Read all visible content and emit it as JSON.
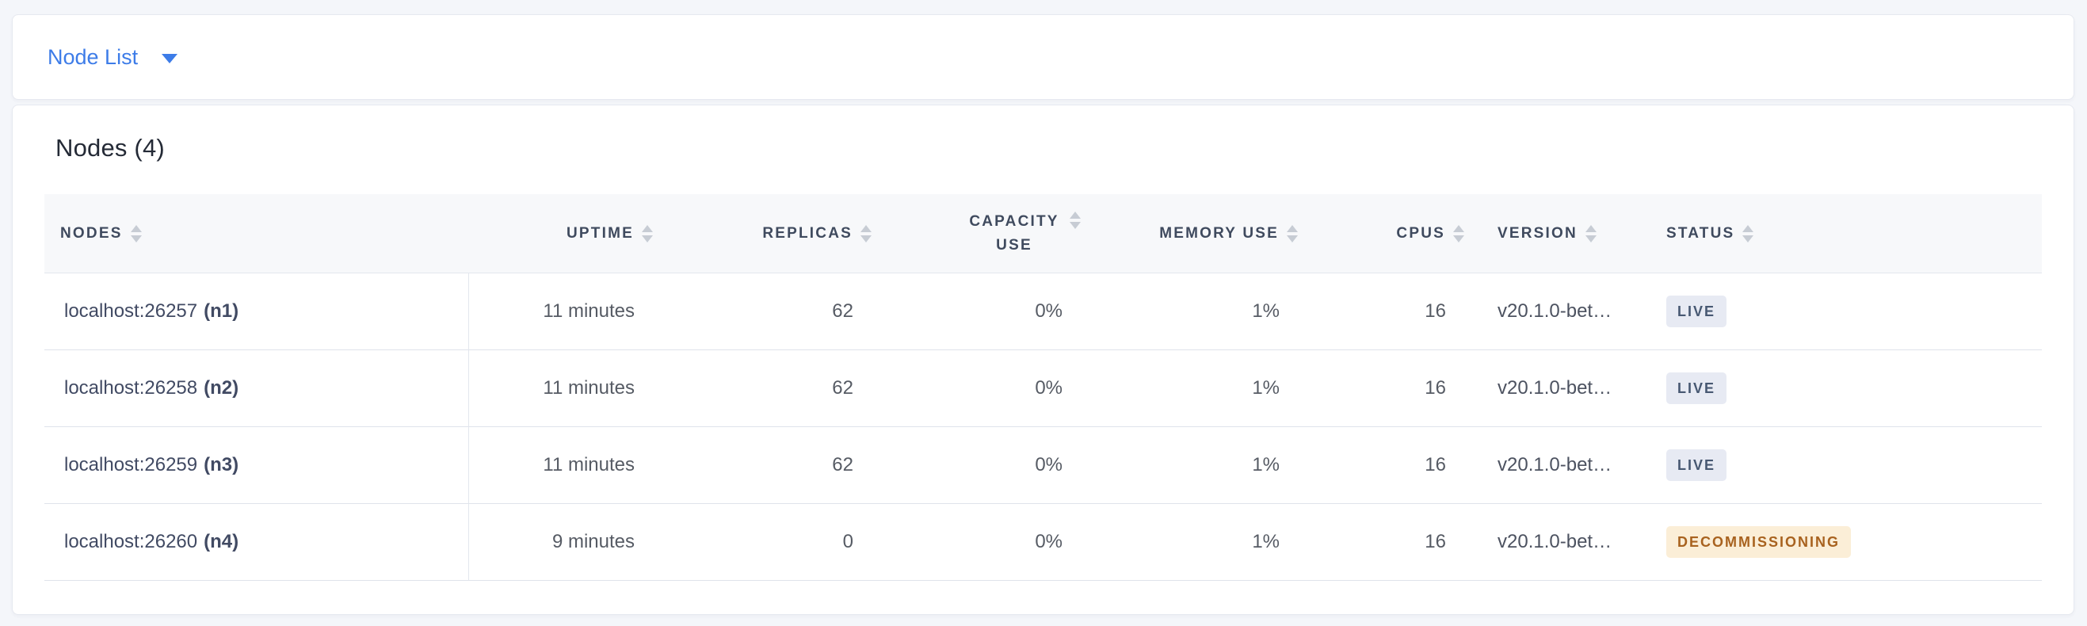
{
  "colors": {
    "accent_blue": "#3d7ce8",
    "page_background": "#f4f6fa",
    "header_text": "#3f4a5e",
    "live_badge_bg": "#e7eaf3",
    "live_badge_text": "#475872",
    "decommissioning_badge_bg": "#fbeed7",
    "decommissioning_badge_text": "#a8621f"
  },
  "selector_bar": {
    "label": "Node List"
  },
  "main": {
    "title": "Nodes (4)",
    "table": {
      "columns": [
        {
          "label": "NODES",
          "align": "left",
          "sortable": true
        },
        {
          "label": "UPTIME",
          "align": "right",
          "sortable": true
        },
        {
          "label": "REPLICAS",
          "align": "right",
          "sortable": true
        },
        {
          "label": "CAPACITY USE",
          "align": "right",
          "sortable": true
        },
        {
          "label": "MEMORY USE",
          "align": "right",
          "sortable": true
        },
        {
          "label": "CPUS",
          "align": "right",
          "sortable": true
        },
        {
          "label": "VERSION",
          "align": "left",
          "sortable": true
        },
        {
          "label": "STATUS",
          "align": "left",
          "sortable": true
        }
      ],
      "rows": [
        {
          "address": "localhost:26257",
          "id": "(n1)",
          "uptime": "11 minutes",
          "replicas": "62",
          "capacity_use": "0%",
          "memory_use": "1%",
          "cpus": "16",
          "version": "v20.1.0-bet…",
          "status": {
            "label": "LIVE",
            "type": "live"
          }
        },
        {
          "address": "localhost:26258",
          "id": "(n2)",
          "uptime": "11 minutes",
          "replicas": "62",
          "capacity_use": "0%",
          "memory_use": "1%",
          "cpus": "16",
          "version": "v20.1.0-bet…",
          "status": {
            "label": "LIVE",
            "type": "live"
          }
        },
        {
          "address": "localhost:26259",
          "id": "(n3)",
          "uptime": "11 minutes",
          "replicas": "62",
          "capacity_use": "0%",
          "memory_use": "1%",
          "cpus": "16",
          "version": "v20.1.0-bet…",
          "status": {
            "label": "LIVE",
            "type": "live"
          }
        },
        {
          "address": "localhost:26260",
          "id": "(n4)",
          "uptime": "9 minutes",
          "replicas": "0",
          "capacity_use": "0%",
          "memory_use": "1%",
          "cpus": "16",
          "version": "v20.1.0-bet…",
          "status": {
            "label": "DECOMMISSIONING",
            "type": "decommissioning"
          }
        }
      ]
    }
  }
}
